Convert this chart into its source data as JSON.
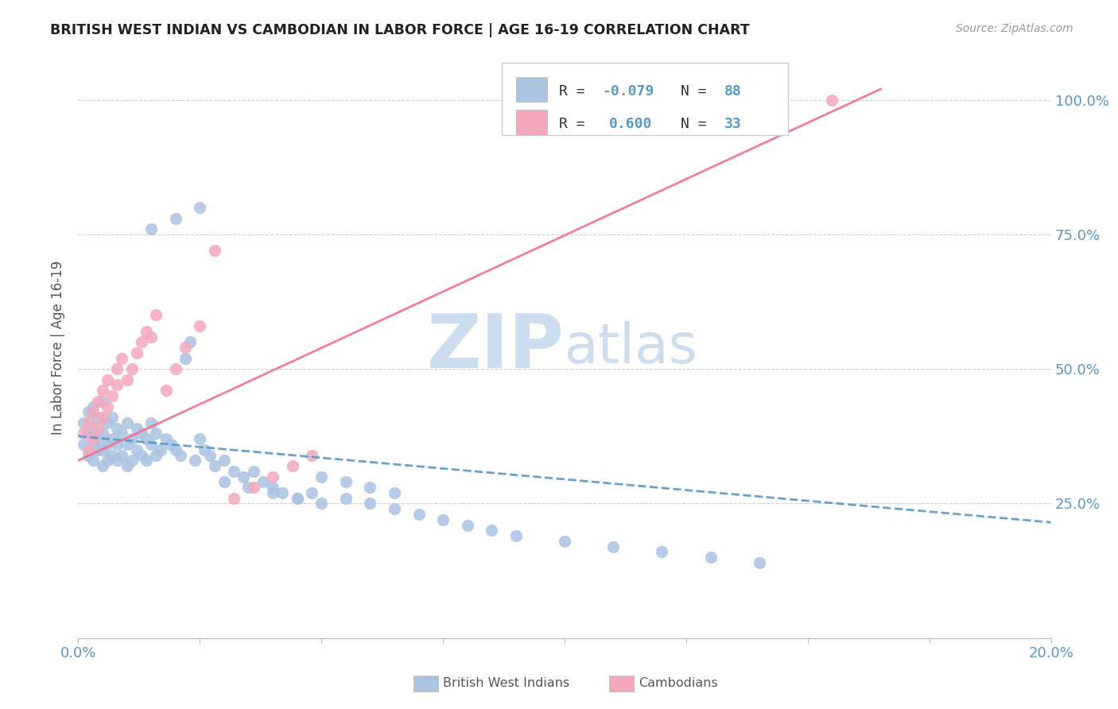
{
  "title": "BRITISH WEST INDIAN VS CAMBODIAN IN LABOR FORCE | AGE 16-19 CORRELATION CHART",
  "source": "Source: ZipAtlas.com",
  "ylabel": "In Labor Force | Age 16-19",
  "xlim": [
    0.0,
    0.2
  ],
  "ylim": [
    0.0,
    1.08
  ],
  "xtick_positions": [
    0.0,
    0.025,
    0.05,
    0.075,
    0.1,
    0.125,
    0.15,
    0.175,
    0.2
  ],
  "xticklabels": [
    "0.0%",
    "",
    "",
    "",
    "",
    "",
    "",
    "",
    "20.0%"
  ],
  "ytick_positions": [
    0.25,
    0.5,
    0.75,
    1.0
  ],
  "yticklabels": [
    "25.0%",
    "50.0%",
    "75.0%",
    "100.0%"
  ],
  "blue_color": "#aac4e2",
  "pink_color": "#f5a8bc",
  "blue_line_color": "#5599cc",
  "pink_line_color": "#f07090",
  "watermark_color": "#ccddf0",
  "tick_label_color": "#5599cc",
  "blue_R": -0.079,
  "blue_N": 88,
  "pink_R": 0.6,
  "pink_N": 33,
  "blue_trend_x": [
    0.0,
    0.2
  ],
  "blue_trend_y": [
    0.375,
    0.215
  ],
  "pink_trend_x": [
    0.0,
    0.165
  ],
  "pink_trend_y": [
    0.33,
    1.02
  ],
  "blue_scatter_x": [
    0.001,
    0.001,
    0.002,
    0.002,
    0.002,
    0.003,
    0.003,
    0.003,
    0.003,
    0.004,
    0.004,
    0.004,
    0.005,
    0.005,
    0.005,
    0.005,
    0.006,
    0.006,
    0.006,
    0.007,
    0.007,
    0.007,
    0.008,
    0.008,
    0.008,
    0.009,
    0.009,
    0.01,
    0.01,
    0.01,
    0.011,
    0.011,
    0.012,
    0.012,
    0.013,
    0.013,
    0.014,
    0.014,
    0.015,
    0.015,
    0.016,
    0.016,
    0.017,
    0.018,
    0.019,
    0.02,
    0.021,
    0.022,
    0.023,
    0.024,
    0.025,
    0.026,
    0.027,
    0.028,
    0.03,
    0.032,
    0.034,
    0.036,
    0.038,
    0.04,
    0.042,
    0.045,
    0.048,
    0.05,
    0.055,
    0.06,
    0.065,
    0.07,
    0.075,
    0.08,
    0.085,
    0.09,
    0.1,
    0.11,
    0.12,
    0.13,
    0.14,
    0.015,
    0.02,
    0.025,
    0.03,
    0.035,
    0.04,
    0.045,
    0.05,
    0.055,
    0.06,
    0.065
  ],
  "blue_scatter_y": [
    0.36,
    0.4,
    0.34,
    0.38,
    0.42,
    0.33,
    0.36,
    0.39,
    0.43,
    0.35,
    0.37,
    0.41,
    0.32,
    0.35,
    0.38,
    0.44,
    0.33,
    0.36,
    0.4,
    0.34,
    0.37,
    0.41,
    0.33,
    0.36,
    0.39,
    0.34,
    0.38,
    0.32,
    0.36,
    0.4,
    0.33,
    0.37,
    0.35,
    0.39,
    0.34,
    0.38,
    0.33,
    0.37,
    0.36,
    0.4,
    0.34,
    0.38,
    0.35,
    0.37,
    0.36,
    0.35,
    0.34,
    0.52,
    0.55,
    0.33,
    0.37,
    0.35,
    0.34,
    0.32,
    0.33,
    0.31,
    0.3,
    0.31,
    0.29,
    0.28,
    0.27,
    0.26,
    0.27,
    0.25,
    0.26,
    0.25,
    0.24,
    0.23,
    0.22,
    0.21,
    0.2,
    0.19,
    0.18,
    0.17,
    0.16,
    0.15,
    0.14,
    0.76,
    0.78,
    0.8,
    0.29,
    0.28,
    0.27,
    0.26,
    0.3,
    0.29,
    0.28,
    0.27
  ],
  "pink_scatter_x": [
    0.001,
    0.002,
    0.002,
    0.003,
    0.003,
    0.004,
    0.004,
    0.005,
    0.005,
    0.006,
    0.006,
    0.007,
    0.008,
    0.008,
    0.009,
    0.01,
    0.011,
    0.012,
    0.013,
    0.014,
    0.015,
    0.016,
    0.018,
    0.02,
    0.022,
    0.025,
    0.028,
    0.032,
    0.036,
    0.04,
    0.044,
    0.048,
    0.155
  ],
  "pink_scatter_y": [
    0.38,
    0.35,
    0.4,
    0.37,
    0.42,
    0.39,
    0.44,
    0.41,
    0.46,
    0.43,
    0.48,
    0.45,
    0.47,
    0.5,
    0.52,
    0.48,
    0.5,
    0.53,
    0.55,
    0.57,
    0.56,
    0.6,
    0.46,
    0.5,
    0.54,
    0.58,
    0.72,
    0.26,
    0.28,
    0.3,
    0.32,
    0.34,
    1.0
  ]
}
